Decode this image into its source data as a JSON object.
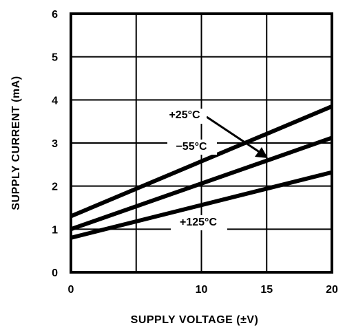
{
  "chart_data": {
    "type": "line",
    "title": "",
    "xlabel": "SUPPLY VOLTAGE (±V)",
    "ylabel": "SUPPLY CURRENT (mA)",
    "xlim": [
      0,
      20
    ],
    "ylim": [
      0,
      6
    ],
    "x_ticks": [
      0,
      5,
      10,
      15,
      20
    ],
    "y_ticks": [
      0,
      1,
      2,
      3,
      4,
      5,
      6
    ],
    "x_tick_labels": [
      "0",
      "",
      "10",
      "15",
      "20"
    ],
    "y_tick_labels": [
      "0",
      "1",
      "2",
      "3",
      "4",
      "5",
      "6"
    ],
    "grid": true,
    "legend": "none",
    "series": [
      {
        "name": "+25°C",
        "x": [
          0,
          20
        ],
        "y": [
          1.3,
          3.85
        ]
      },
      {
        "name": "−55°C",
        "x": [
          0,
          20
        ],
        "y": [
          1.0,
          3.12
        ]
      },
      {
        "name": "+125°C",
        "x": [
          0,
          20
        ],
        "y": [
          0.8,
          2.32
        ]
      }
    ]
  }
}
